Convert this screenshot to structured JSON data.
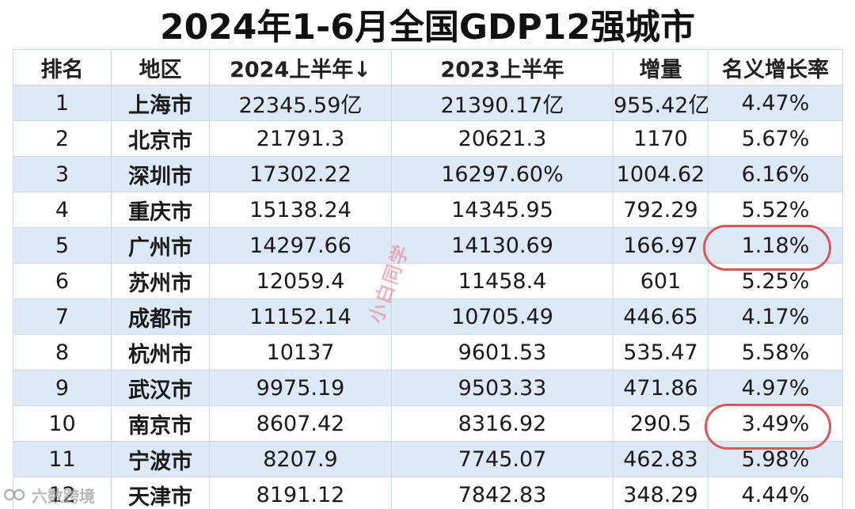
{
  "title": "2024年1-6月全国GDP12强城市",
  "columns": [
    "排名",
    "地区",
    "2024上半年↓",
    "2023上半年",
    "增量",
    "名义增长率"
  ],
  "rows": [
    {
      "rank": "1",
      "city": "上海市",
      "h1_2024": "22345.59亿",
      "h1_2023": "21390.17亿",
      "increase": "955.42亿",
      "growth": "4.47%"
    },
    {
      "rank": "2",
      "city": "北京市",
      "h1_2024": "21791.3",
      "h1_2023": "20621.3",
      "increase": "1170",
      "growth": "5.67%"
    },
    {
      "rank": "3",
      "city": "深圳市",
      "h1_2024": "17302.22",
      "h1_2023": "16297.60%",
      "increase": "1004.62",
      "growth": "6.16%"
    },
    {
      "rank": "4",
      "city": "重庆市",
      "h1_2024": "15138.24",
      "h1_2023": "14345.95",
      "increase": "792.29",
      "growth": "5.52%"
    },
    {
      "rank": "5",
      "city": "广州市",
      "h1_2024": "14297.66",
      "h1_2023": "14130.69",
      "increase": "166.97",
      "growth": "1.18%"
    },
    {
      "rank": "6",
      "city": "苏州市",
      "h1_2024": "12059.4",
      "h1_2023": "11458.4",
      "increase": "601",
      "growth": "5.25%"
    },
    {
      "rank": "7",
      "city": "成都市",
      "h1_2024": "11152.14",
      "h1_2023": "10705.49",
      "increase": "446.65",
      "growth": "4.17%"
    },
    {
      "rank": "8",
      "city": "杭州市",
      "h1_2024": "10137",
      "h1_2023": "9601.53",
      "increase": "535.47",
      "growth": "5.58%"
    },
    {
      "rank": "9",
      "city": "武汉市",
      "h1_2024": "9975.19",
      "h1_2023": "9503.33",
      "increase": "471.86",
      "growth": "4.97%"
    },
    {
      "rank": "10",
      "city": "南京市",
      "h1_2024": "8607.42",
      "h1_2023": "8316.92",
      "increase": "290.5",
      "growth": "3.49%"
    },
    {
      "rank": "11",
      "city": "宁波市",
      "h1_2024": "8207.9",
      "h1_2023": "7745.07",
      "increase": "462.83",
      "growth": "5.98%"
    },
    {
      "rank": "12",
      "city": "天津市",
      "h1_2024": "8191.12",
      "h1_2023": "7842.83",
      "increase": "348.29",
      "growth": "4.44%"
    }
  ],
  "annotations": {
    "highlight_color": "#d9575b",
    "highlighted_rows": [
      "5",
      "10"
    ]
  },
  "watermark": "小白同学",
  "logo": "六数跨境",
  "colors": {
    "stripe": "#dde9f7",
    "border": "#cfd8e3"
  }
}
